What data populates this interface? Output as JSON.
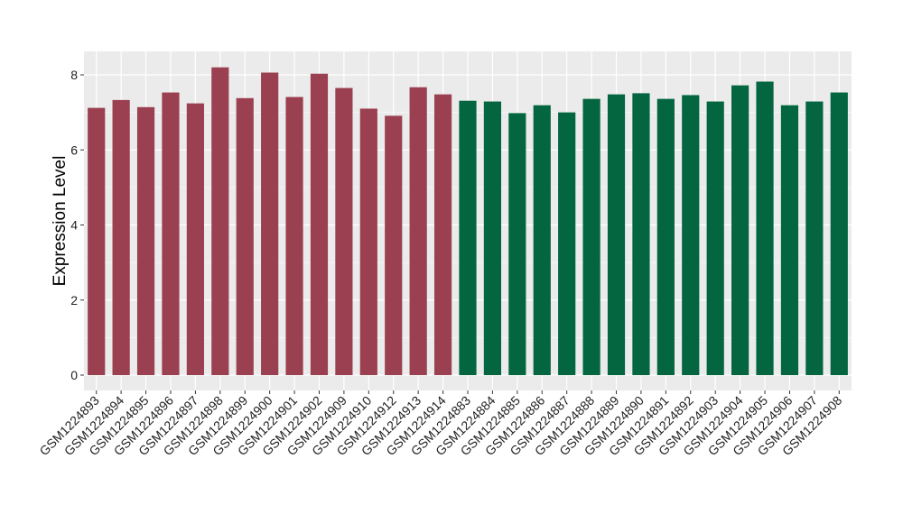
{
  "chart_data": {
    "type": "bar",
    "title": "",
    "xlabel": "",
    "ylabel": "Expression Level",
    "ylim": [
      0,
      8.6
    ],
    "yticks": [
      0,
      2,
      4,
      6,
      8
    ],
    "grid": true,
    "legend": "none",
    "colors": {
      "group1": "#9b4050",
      "group2": "#036641",
      "panel": "#ebebeb",
      "gridline": "#ffffff"
    },
    "categories": [
      "GSM1224893",
      "GSM1224894",
      "GSM1224895",
      "GSM1224896",
      "GSM1224897",
      "GSM1224898",
      "GSM1224899",
      "GSM1224900",
      "GSM1224901",
      "GSM1224902",
      "GSM1224909",
      "GSM1224910",
      "GSM1224912",
      "GSM1224913",
      "GSM1224914",
      "GSM1224883",
      "GSM1224884",
      "GSM1224885",
      "GSM1224886",
      "GSM1224887",
      "GSM1224888",
      "GSM1224889",
      "GSM1224890",
      "GSM1224891",
      "GSM1224892",
      "GSM1224903",
      "GSM1224904",
      "GSM1224905",
      "GSM1224906",
      "GSM1224907",
      "GSM1224908"
    ],
    "values": [
      7.12,
      7.33,
      7.14,
      7.53,
      7.24,
      8.2,
      7.38,
      8.06,
      7.41,
      8.03,
      7.65,
      7.1,
      6.91,
      7.67,
      7.48,
      7.31,
      7.29,
      6.98,
      7.19,
      7.0,
      7.36,
      7.48,
      7.51,
      7.36,
      7.46,
      7.29,
      7.72,
      7.82,
      7.19,
      7.29,
      7.53
    ],
    "groups": [
      1,
      1,
      1,
      1,
      1,
      1,
      1,
      1,
      1,
      1,
      1,
      1,
      1,
      1,
      1,
      2,
      2,
      2,
      2,
      2,
      2,
      2,
      2,
      2,
      2,
      2,
      2,
      2,
      2,
      2,
      2
    ]
  }
}
